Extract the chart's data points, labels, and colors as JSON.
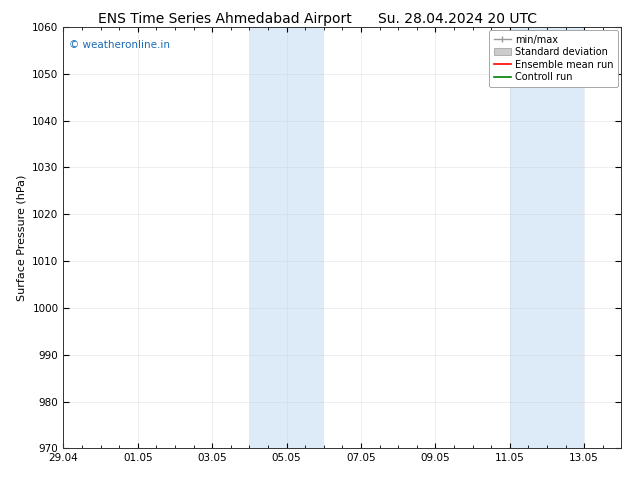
{
  "title_left": "ENS Time Series Ahmedabad Airport",
  "title_right": "Su. 28.04.2024 20 UTC",
  "ylabel": "Surface Pressure (hPa)",
  "ylim": [
    970,
    1060
  ],
  "yticks": [
    970,
    980,
    990,
    1000,
    1010,
    1020,
    1030,
    1040,
    1050,
    1060
  ],
  "xlim_start": 0,
  "xlim_end": 360,
  "xtick_labels": [
    "29.04",
    "01.05",
    "03.05",
    "05.05",
    "07.05",
    "09.05",
    "11.05",
    "13.05"
  ],
  "xtick_positions": [
    0,
    48,
    96,
    144,
    192,
    240,
    288,
    336
  ],
  "shaded_bands": [
    {
      "start": 120,
      "end": 144
    },
    {
      "start": 144,
      "end": 168
    },
    {
      "start": 288,
      "end": 312
    },
    {
      "start": 312,
      "end": 336
    }
  ],
  "shade_color": "#ddeaf7",
  "watermark_text": "© weatheronline.in",
  "watermark_color": "#1a6bb5",
  "bg_color": "#ffffff",
  "grid_color": "#cccccc",
  "title_fontsize": 10,
  "tick_fontsize": 7.5,
  "ylabel_fontsize": 8,
  "legend_fontsize": 7,
  "watermark_fontsize": 7.5,
  "minor_tick_interval": 12
}
